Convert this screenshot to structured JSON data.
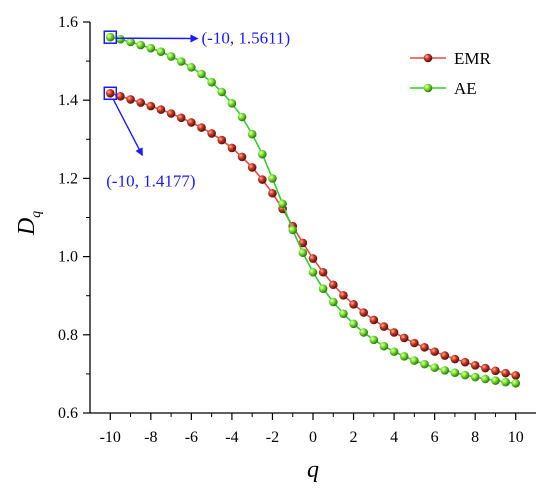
{
  "chart_data": {
    "type": "line",
    "xlabel": "q",
    "ylabel": "D",
    "ylabel_subscript": "q",
    "xlim": [
      -11,
      11
    ],
    "ylim": [
      0.6,
      1.6
    ],
    "xticks": [
      -10,
      -8,
      -6,
      -4,
      -2,
      0,
      2,
      4,
      6,
      8,
      10
    ],
    "xtick_labels": [
      "-10",
      "-8",
      "-6",
      "-4",
      "-2",
      "0",
      "2",
      "4",
      "6",
      "8",
      "10"
    ],
    "yticks": [
      0.6,
      0.8,
      1.0,
      1.2,
      1.4,
      1.6
    ],
    "ytick_labels": [
      "0.6",
      "0.8",
      "1.0",
      "1.2",
      "1.4",
      "1.6"
    ],
    "x": [
      -10,
      -9.5,
      -9,
      -8.5,
      -8,
      -7.5,
      -7,
      -6.5,
      -6,
      -5.5,
      -5,
      -4.5,
      -4,
      -3.5,
      -3,
      -2.5,
      -2,
      -1.5,
      -1,
      -0.5,
      0,
      0.5,
      1,
      1.5,
      2,
      2.5,
      3,
      3.5,
      4,
      4.5,
      5,
      5.5,
      6,
      6.5,
      7,
      7.5,
      8,
      8.5,
      9,
      9.5,
      10
    ],
    "series": [
      {
        "name": "EMR",
        "color": "#8b1a10",
        "line_color": "#e04a4a",
        "values": [
          1.4177,
          1.41,
          1.402,
          1.394,
          1.385,
          1.376,
          1.366,
          1.355,
          1.343,
          1.33,
          1.315,
          1.298,
          1.278,
          1.255,
          1.228,
          1.197,
          1.162,
          1.122,
          1.078,
          1.035,
          0.995,
          0.96,
          0.928,
          0.901,
          0.878,
          0.857,
          0.838,
          0.821,
          0.806,
          0.792,
          0.779,
          0.768,
          0.757,
          0.747,
          0.738,
          0.73,
          0.722,
          0.715,
          0.708,
          0.702,
          0.696
        ]
      },
      {
        "name": "AE",
        "color": "#4fc21a",
        "line_color": "#33cc33",
        "values": [
          1.5611,
          1.556,
          1.549,
          1.541,
          1.533,
          1.524,
          1.512,
          1.499,
          1.484,
          1.467,
          1.446,
          1.421,
          1.392,
          1.357,
          1.313,
          1.262,
          1.2,
          1.135,
          1.068,
          1.01,
          0.96,
          0.918,
          0.884,
          0.854,
          0.828,
          0.806,
          0.787,
          0.771,
          0.757,
          0.745,
          0.734,
          0.725,
          0.716,
          0.709,
          0.703,
          0.697,
          0.692,
          0.687,
          0.683,
          0.679,
          0.676
        ]
      }
    ],
    "legend_position": "top-right",
    "grid": false,
    "annotations": [
      {
        "text": "(-10, 1.5611)",
        "x": -10,
        "y": 1.5611,
        "text_x": -5.5,
        "text_y": 1.545
      },
      {
        "text": "(-10, 1.4177)",
        "x": -10,
        "y": 1.4177,
        "text_x": -7.2,
        "text_y": 1.235
      }
    ]
  }
}
